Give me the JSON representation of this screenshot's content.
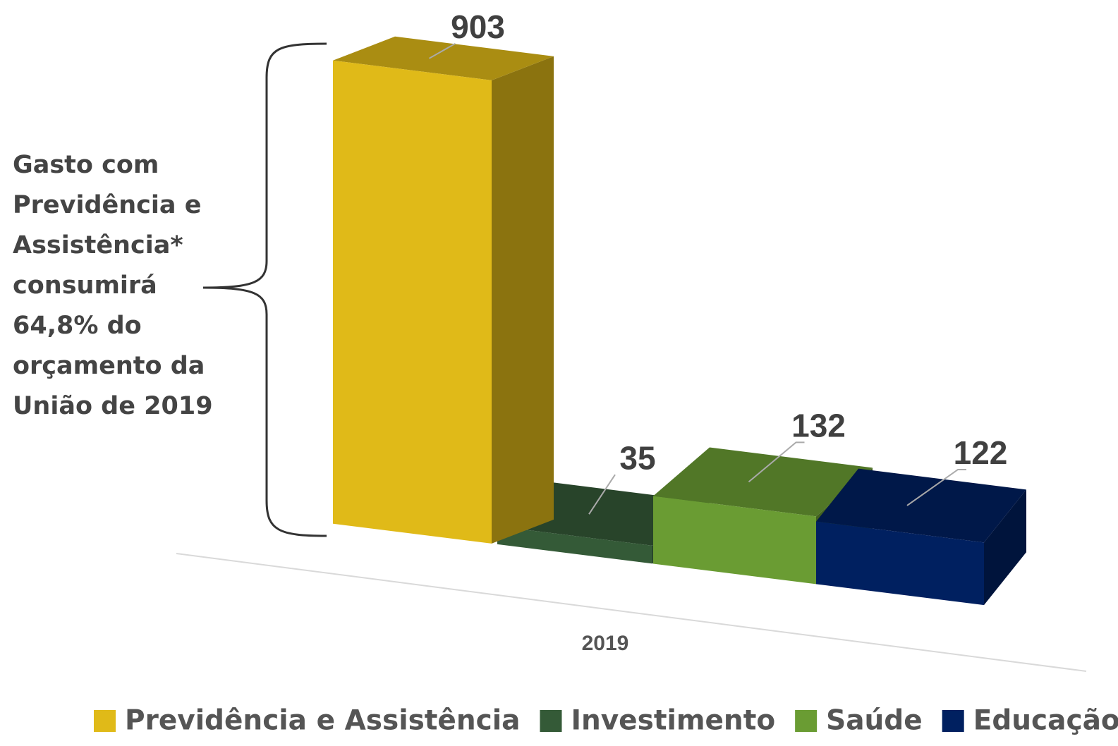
{
  "chart_data": {
    "type": "bar3d",
    "categories": [
      "2019"
    ],
    "series": [
      {
        "name": "Previdência e Assistência",
        "color": "#e0ba18",
        "values": [
          903
        ]
      },
      {
        "name": "Investimento",
        "color": "#345a37",
        "values": [
          35
        ]
      },
      {
        "name": "Saúde",
        "color": "#6a9c33",
        "values": [
          132
        ]
      },
      {
        "name": "Educação",
        "color": "#002060",
        "values": [
          122
        ]
      }
    ],
    "annotation": [
      "Gasto com",
      "Previdência e",
      "Assistência*",
      "consumirá",
      "64,8% do",
      "orçamento da",
      "União de 2019"
    ]
  }
}
